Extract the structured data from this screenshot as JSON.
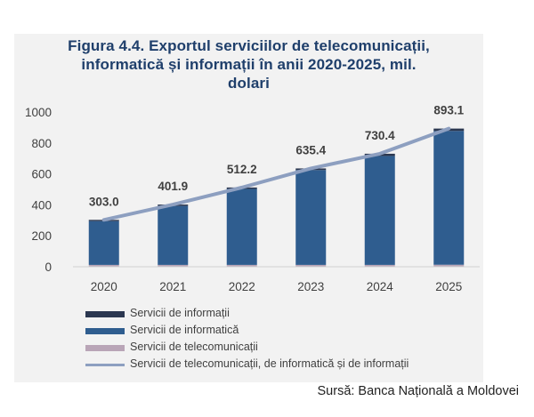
{
  "chart_data": {
    "type": "bar",
    "title_lines": [
      "Figura  4.4. Exportul serviciilor de telecomunicații,",
      "informatică și informații în anii 2020-2025, mil.",
      "dolari"
    ],
    "categories": [
      "2020",
      "2021",
      "2022",
      "2023",
      "2024",
      "2025"
    ],
    "stacked": true,
    "series": [
      {
        "name": "Servicii de telecomunicații",
        "kind": "bar",
        "color": "#b9a5b7",
        "values": [
          12,
          12,
          12,
          12,
          12,
          13
        ]
      },
      {
        "name": "Servicii de informatică",
        "kind": "bar",
        "color": "#2f5d8f",
        "values": [
          283,
          381,
          491,
          613,
          704,
          865
        ]
      },
      {
        "name": "Servicii de informații",
        "kind": "bar",
        "color": "#2b3750",
        "values": [
          8,
          8.9,
          9.2,
          10.4,
          14.4,
          15.1
        ]
      },
      {
        "name": "Servicii de telecomunicații, de informatică și de informații",
        "kind": "line",
        "color": "#8d9fc0",
        "values": [
          303.0,
          401.9,
          512.2,
          635.4,
          730.4,
          893.1
        ]
      }
    ],
    "data_labels": [
      "303.0",
      "401.9",
      "512.2",
      "635.4",
      "730.4",
      "893.1"
    ],
    "y_ticks": [
      "0",
      "200",
      "400",
      "600",
      "800",
      "1000"
    ],
    "ylim": [
      0,
      1000
    ],
    "grid": false,
    "legend_position": "bottom-left"
  },
  "source": "Sursă: Banca Națională a Moldovei"
}
